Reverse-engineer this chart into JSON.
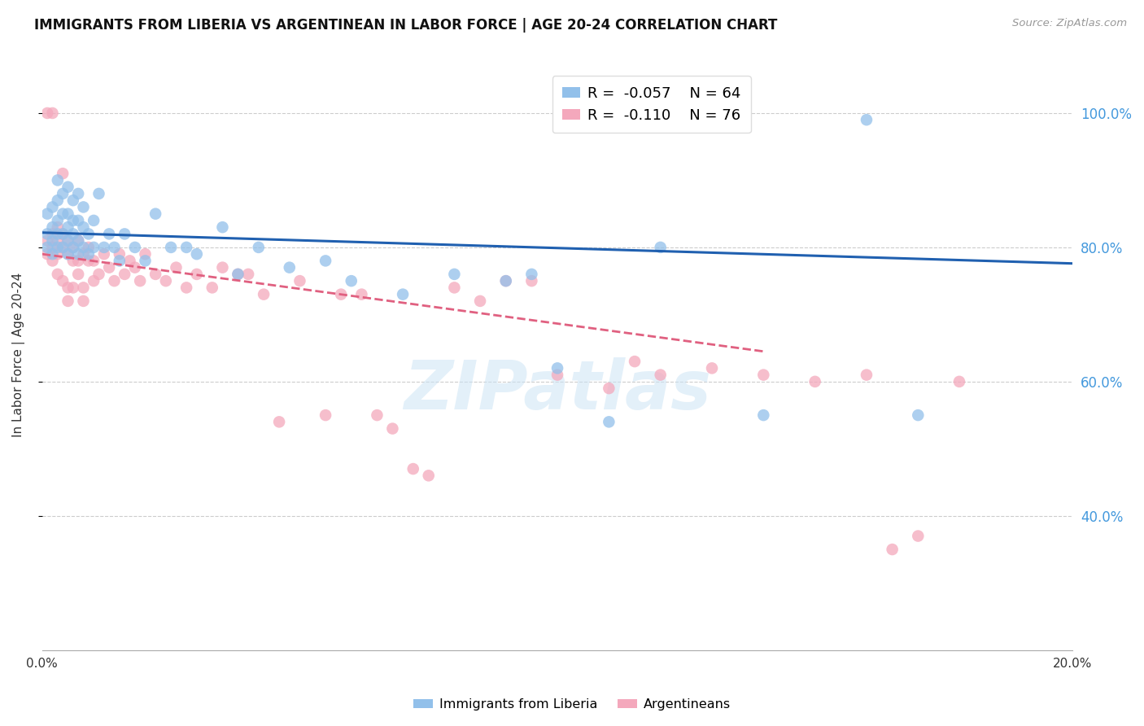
{
  "title": "IMMIGRANTS FROM LIBERIA VS ARGENTINEAN IN LABOR FORCE | AGE 20-24 CORRELATION CHART",
  "source": "Source: ZipAtlas.com",
  "ylabel": "In Labor Force | Age 20-24",
  "xmin": 0.0,
  "xmax": 0.2,
  "ymin": 0.2,
  "ymax": 1.08,
  "yticks": [
    0.4,
    0.6,
    0.8,
    1.0
  ],
  "ytick_labels": [
    "40.0%",
    "60.0%",
    "80.0%",
    "100.0%"
  ],
  "xticks": [
    0.0,
    0.04,
    0.08,
    0.12,
    0.16,
    0.2
  ],
  "xtick_labels": [
    "0.0%",
    "",
    "",
    "",
    "",
    "20.0%"
  ],
  "legend_liberia_R": "-0.057",
  "legend_liberia_N": "64",
  "legend_arg_R": "-0.110",
  "legend_arg_N": "76",
  "liberia_color": "#92c0ea",
  "arg_color": "#f4a8bc",
  "trend_liberia_color": "#2060b0",
  "trend_arg_color": "#e06080",
  "watermark_text": "ZIPatlas",
  "background_color": "#ffffff",
  "grid_color": "#cccccc",
  "right_axis_color": "#4499dd",
  "liberia_x": [
    0.001,
    0.001,
    0.001,
    0.002,
    0.002,
    0.002,
    0.002,
    0.003,
    0.003,
    0.003,
    0.003,
    0.003,
    0.004,
    0.004,
    0.004,
    0.004,
    0.005,
    0.005,
    0.005,
    0.005,
    0.005,
    0.006,
    0.006,
    0.006,
    0.006,
    0.007,
    0.007,
    0.007,
    0.007,
    0.008,
    0.008,
    0.008,
    0.009,
    0.009,
    0.01,
    0.01,
    0.011,
    0.012,
    0.013,
    0.014,
    0.015,
    0.016,
    0.018,
    0.02,
    0.022,
    0.025,
    0.028,
    0.03,
    0.035,
    0.038,
    0.042,
    0.048,
    0.055,
    0.06,
    0.07,
    0.08,
    0.09,
    0.095,
    0.1,
    0.11,
    0.12,
    0.14,
    0.16,
    0.17
  ],
  "liberia_y": [
    0.8,
    0.82,
    0.85,
    0.79,
    0.81,
    0.83,
    0.86,
    0.8,
    0.82,
    0.84,
    0.87,
    0.9,
    0.8,
    0.82,
    0.85,
    0.88,
    0.79,
    0.81,
    0.83,
    0.85,
    0.89,
    0.8,
    0.82,
    0.84,
    0.87,
    0.79,
    0.81,
    0.84,
    0.88,
    0.8,
    0.83,
    0.86,
    0.79,
    0.82,
    0.8,
    0.84,
    0.88,
    0.8,
    0.82,
    0.8,
    0.78,
    0.82,
    0.8,
    0.78,
    0.85,
    0.8,
    0.8,
    0.79,
    0.83,
    0.76,
    0.8,
    0.77,
    0.78,
    0.75,
    0.73,
    0.76,
    0.75,
    0.76,
    0.62,
    0.54,
    0.8,
    0.55,
    0.99,
    0.55
  ],
  "arg_x": [
    0.001,
    0.001,
    0.001,
    0.002,
    0.002,
    0.002,
    0.002,
    0.003,
    0.003,
    0.003,
    0.003,
    0.004,
    0.004,
    0.004,
    0.004,
    0.005,
    0.005,
    0.005,
    0.005,
    0.006,
    0.006,
    0.006,
    0.007,
    0.007,
    0.007,
    0.008,
    0.008,
    0.008,
    0.009,
    0.009,
    0.01,
    0.01,
    0.011,
    0.012,
    0.013,
    0.014,
    0.015,
    0.016,
    0.017,
    0.018,
    0.019,
    0.02,
    0.022,
    0.024,
    0.026,
    0.028,
    0.03,
    0.033,
    0.035,
    0.038,
    0.04,
    0.043,
    0.046,
    0.05,
    0.055,
    0.058,
    0.062,
    0.065,
    0.068,
    0.072,
    0.075,
    0.08,
    0.085,
    0.09,
    0.095,
    0.1,
    0.11,
    0.115,
    0.12,
    0.13,
    0.14,
    0.15,
    0.16,
    0.165,
    0.17,
    0.178
  ],
  "arg_y": [
    0.79,
    0.81,
    1.0,
    0.78,
    0.8,
    0.82,
    1.0,
    0.79,
    0.81,
    0.83,
    0.76,
    0.8,
    0.82,
    0.75,
    0.91,
    0.79,
    0.81,
    0.72,
    0.74,
    0.78,
    0.8,
    0.74,
    0.78,
    0.81,
    0.76,
    0.79,
    0.72,
    0.74,
    0.78,
    0.8,
    0.78,
    0.75,
    0.76,
    0.79,
    0.77,
    0.75,
    0.79,
    0.76,
    0.78,
    0.77,
    0.75,
    0.79,
    0.76,
    0.75,
    0.77,
    0.74,
    0.76,
    0.74,
    0.77,
    0.76,
    0.76,
    0.73,
    0.54,
    0.75,
    0.55,
    0.73,
    0.73,
    0.55,
    0.53,
    0.47,
    0.46,
    0.74,
    0.72,
    0.75,
    0.75,
    0.61,
    0.59,
    0.63,
    0.61,
    0.62,
    0.61,
    0.6,
    0.61,
    0.35,
    0.37,
    0.6
  ],
  "trend_liberia_x0": 0.0,
  "trend_liberia_x1": 0.2,
  "trend_liberia_y0": 0.822,
  "trend_liberia_y1": 0.776,
  "trend_arg_x0": 0.0,
  "trend_arg_x1": 0.14,
  "trend_arg_y0": 0.79,
  "trend_arg_y1": 0.645
}
